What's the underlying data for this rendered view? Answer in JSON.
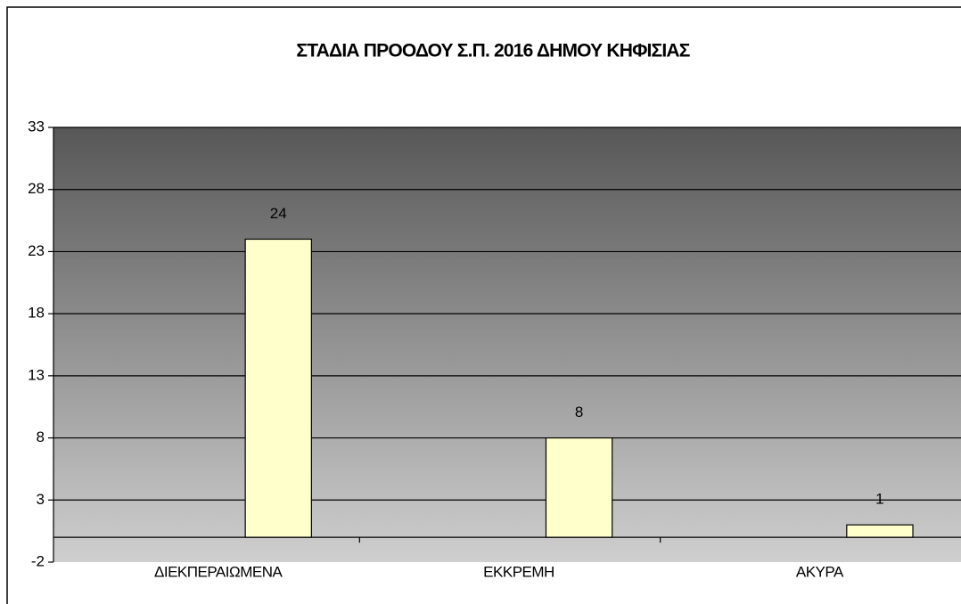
{
  "chart_data": {
    "type": "bar",
    "title": "ΣΤΑΔΙΑ ΠΡΟΟΔΟΥ Σ.Π. 2016 ΔΗΜΟΥ ΚΗΦΙΣΙΑΣ",
    "categories": [
      "ΔΙΕΚΠΕΡΑΙΩΜΕΝΑ",
      "ΕΚΚΡΕΜΗ",
      "ΑΚΥΡΑ"
    ],
    "values": [
      24,
      8,
      1
    ],
    "color": "#ffffcc",
    "ylim": [
      -2,
      33
    ],
    "yticks": [
      -2,
      3,
      8,
      13,
      18,
      23,
      28,
      33
    ],
    "grid": true
  }
}
